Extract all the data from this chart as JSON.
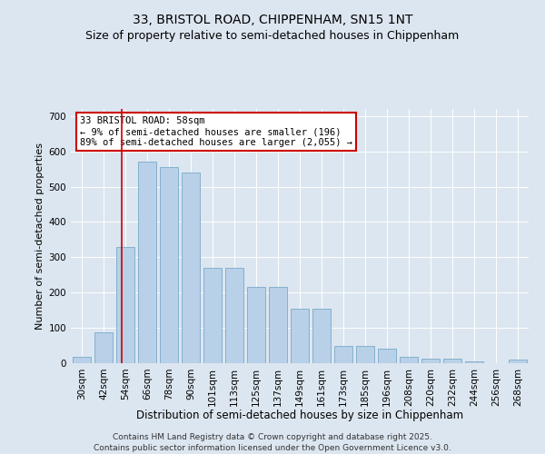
{
  "title1": "33, BRISTOL ROAD, CHIPPENHAM, SN15 1NT",
  "title2": "Size of property relative to semi-detached houses in Chippenham",
  "xlabel": "Distribution of semi-detached houses by size in Chippenham",
  "ylabel": "Number of semi-detached properties",
  "categories": [
    "30sqm",
    "42sqm",
    "54sqm",
    "66sqm",
    "78sqm",
    "90sqm",
    "101sqm",
    "113sqm",
    "125sqm",
    "137sqm",
    "149sqm",
    "161sqm",
    "173sqm",
    "185sqm",
    "196sqm",
    "208sqm",
    "220sqm",
    "232sqm",
    "244sqm",
    "256sqm",
    "268sqm"
  ],
  "values": [
    18,
    88,
    330,
    570,
    555,
    540,
    270,
    270,
    215,
    215,
    155,
    155,
    50,
    50,
    40,
    18,
    12,
    12,
    5,
    0,
    10
  ],
  "bar_color": "#b8d0e8",
  "bar_edge_color": "#7aaac8",
  "annotation_text": "33 BRISTOL ROAD: 58sqm\n← 9% of semi-detached houses are smaller (196)\n89% of semi-detached houses are larger (2,055) →",
  "annotation_box_color": "#ffffff",
  "annotation_box_edge": "#cc0000",
  "vline_color": "#cc0000",
  "background_color": "#dce6f0",
  "plot_bg_color": "#dce6f0",
  "ylim": [
    0,
    720
  ],
  "yticks": [
    0,
    100,
    200,
    300,
    400,
    500,
    600,
    700
  ],
  "footer_line1": "Contains HM Land Registry data © Crown copyright and database right 2025.",
  "footer_line2": "Contains public sector information licensed under the Open Government Licence v3.0.",
  "title1_fontsize": 10,
  "title2_fontsize": 9,
  "xlabel_fontsize": 8.5,
  "ylabel_fontsize": 8,
  "tick_fontsize": 7.5,
  "annotation_fontsize": 7.5,
  "footer_fontsize": 6.5
}
